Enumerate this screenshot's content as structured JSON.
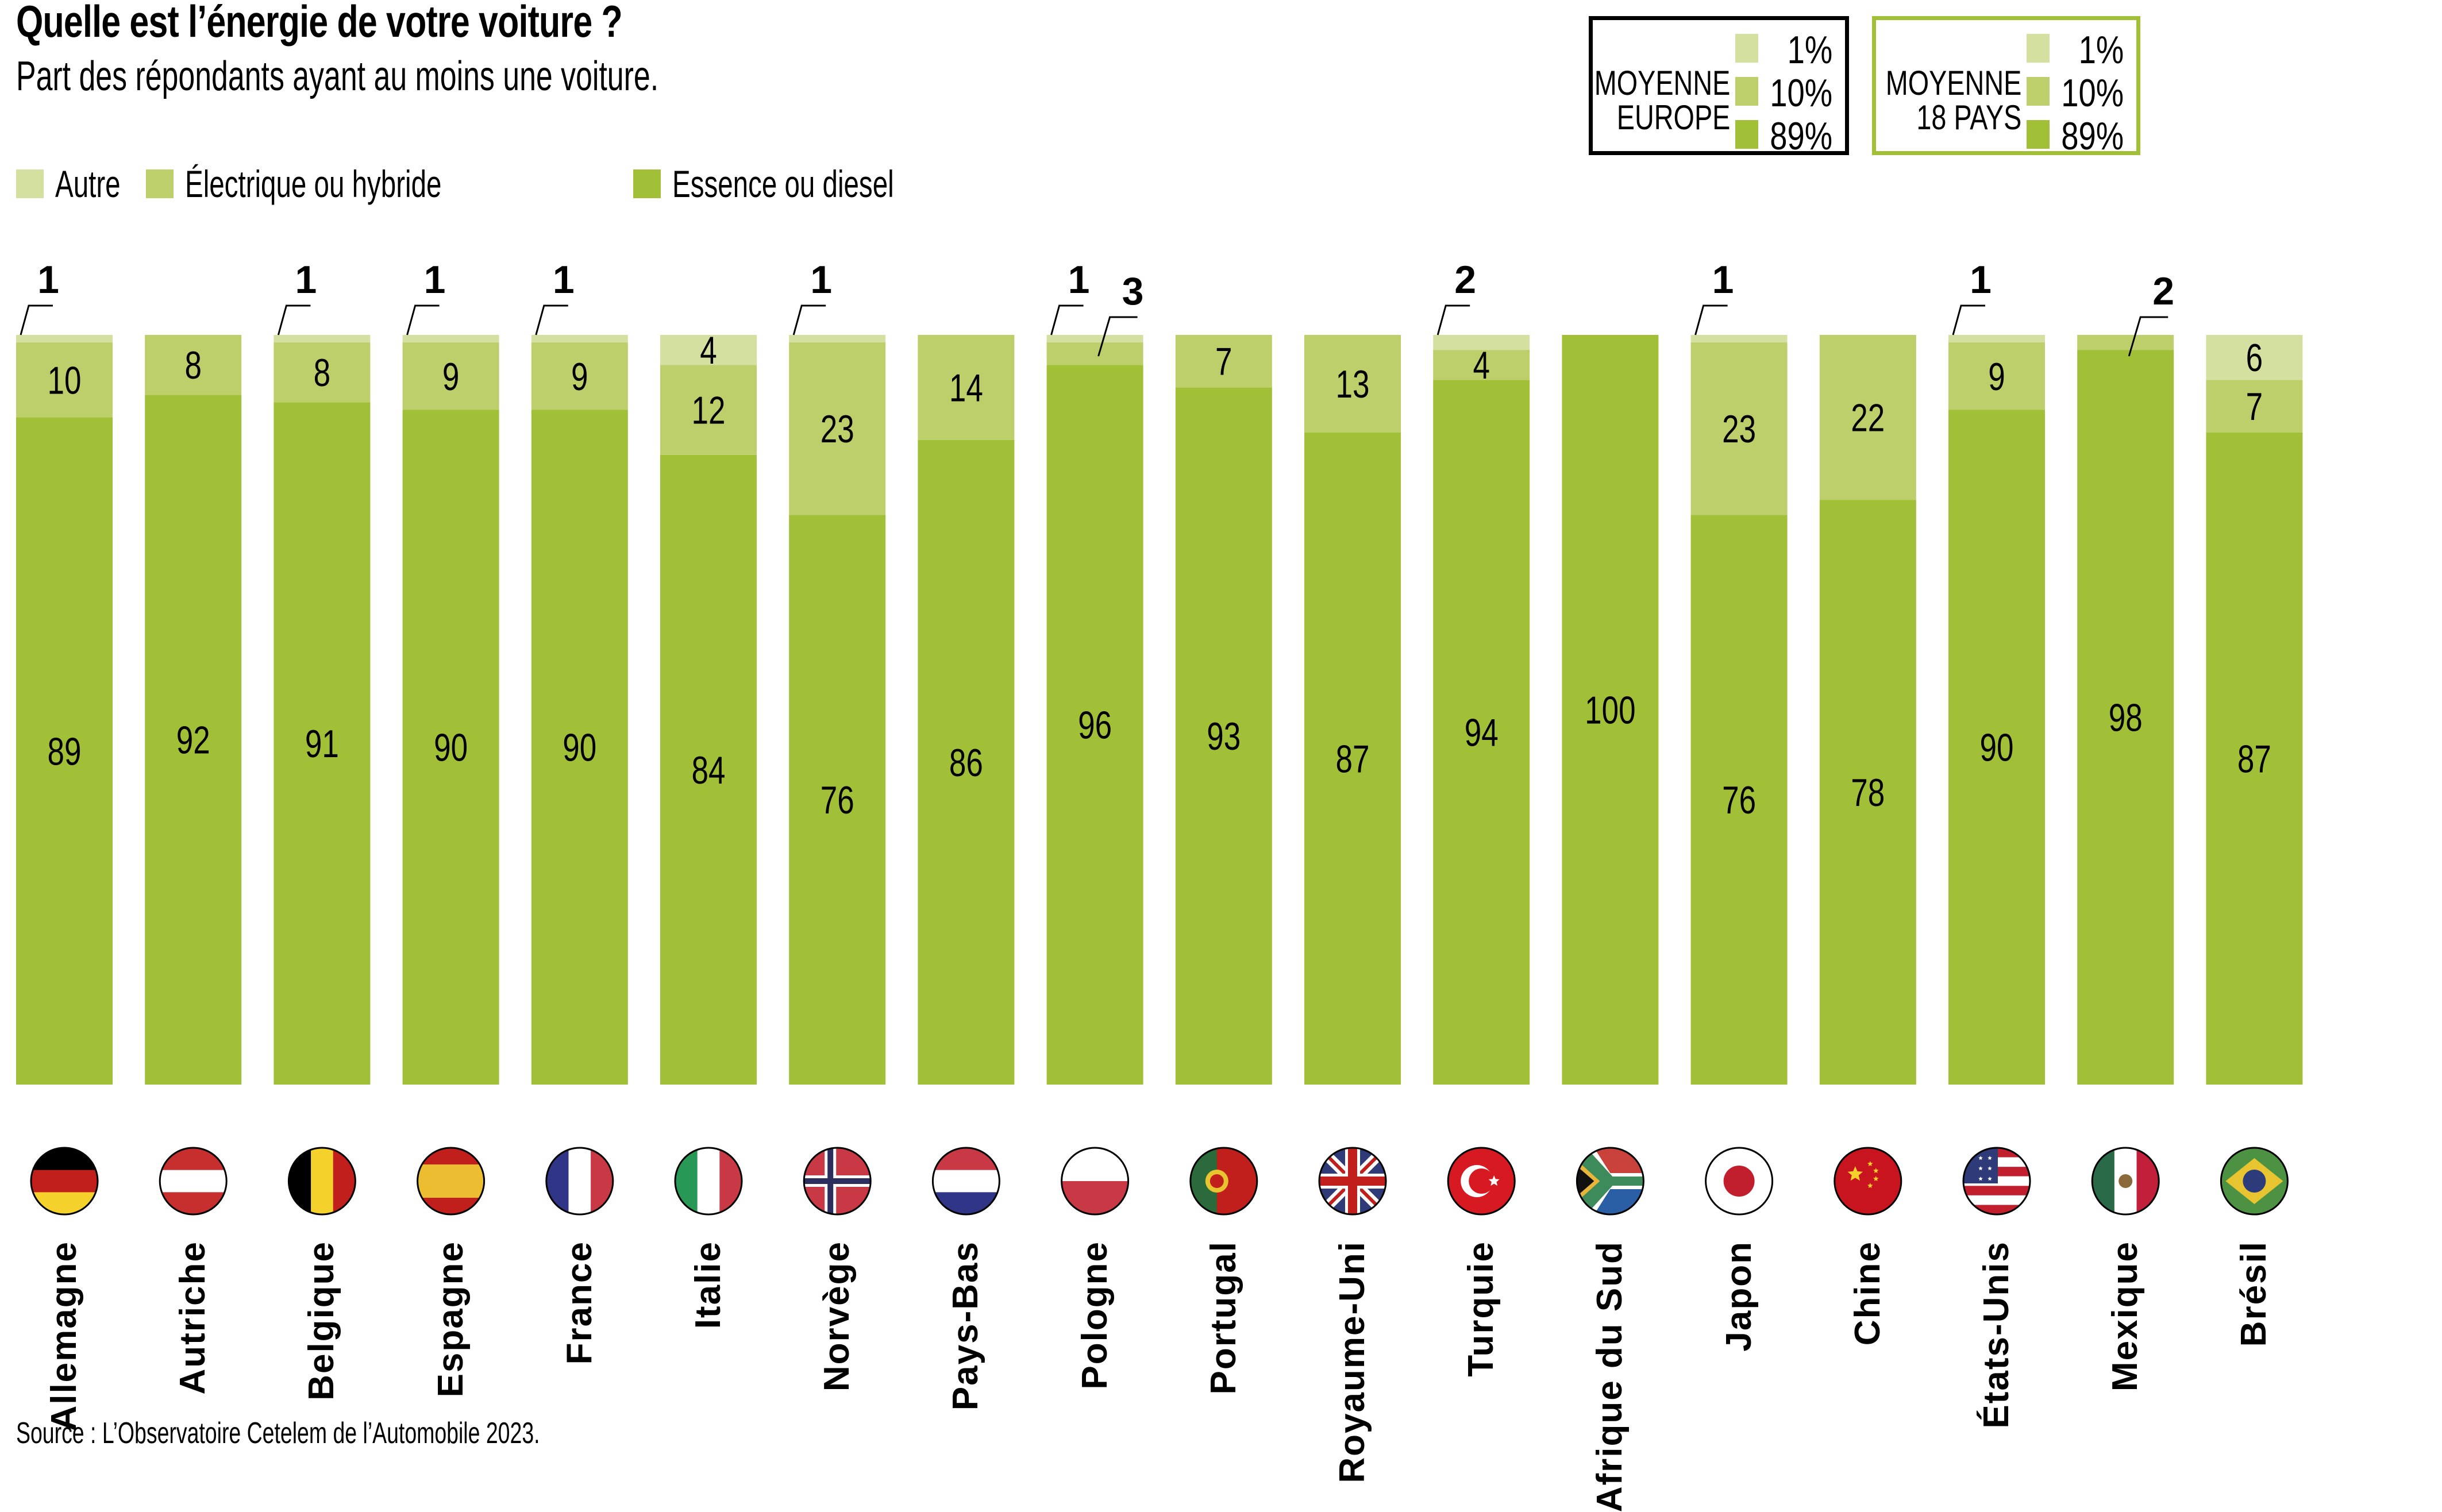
{
  "header": {
    "title": "Quelle est l’énergie de votre voiture ?",
    "subtitle": "Part des répondants ayant au moins une voiture."
  },
  "legend": [
    {
      "label": "Autre",
      "color": "#d4e09f"
    },
    {
      "label": "Électrique ou hybride",
      "color": "#bdcf6b"
    },
    {
      "label": "Essence ou diesel",
      "color": "#a2c037"
    }
  ],
  "averages": [
    {
      "title_line1": "MOYENNE",
      "title_line2": "EUROPE",
      "border_color": "#000000",
      "values": [
        "1%",
        "10%",
        "89%"
      ]
    },
    {
      "title_line1": "MOYENNE",
      "title_line2": "18 PAYS",
      "border_color": "#a2c037",
      "values": [
        "1%",
        "10%",
        "89%"
      ]
    }
  ],
  "source": "Source : L’Observatoire Cetelem de l’Automobile 2023.",
  "chart_data": {
    "type": "bar",
    "stacked": true,
    "title": "Quelle est l’énergie de votre voiture ?",
    "subtitle": "Part des répondants ayant au moins une voiture.",
    "xlabel": "",
    "ylabel": "",
    "ylim": [
      0,
      100
    ],
    "grid": false,
    "legend_position": "top-left",
    "categories": [
      "Allemagne",
      "Autriche",
      "Belgique",
      "Espagne",
      "France",
      "Italie",
      "Norvège",
      "Pays-Bas",
      "Pologne",
      "Portugal",
      "Royaume-Uni",
      "Turquie",
      "Afrique du Sud",
      "Japon",
      "Chine",
      "États-Unis",
      "Mexique",
      "Brésil"
    ],
    "flags": [
      "flag-de-icon",
      "flag-at-icon",
      "flag-be-icon",
      "flag-es-icon",
      "flag-fr-icon",
      "flag-it-icon",
      "flag-no-icon",
      "flag-nl-icon",
      "flag-pl-icon",
      "flag-pt-icon",
      "flag-gb-icon",
      "flag-tr-icon",
      "flag-za-icon",
      "flag-jp-icon",
      "flag-cn-icon",
      "flag-us-icon",
      "flag-mx-icon",
      "flag-br-icon"
    ],
    "series": [
      {
        "name": "Essence ou diesel",
        "color": "#a2c037",
        "values": [
          89,
          92,
          91,
          90,
          90,
          84,
          76,
          86,
          96,
          93,
          87,
          94,
          100,
          76,
          78,
          90,
          98,
          87
        ]
      },
      {
        "name": "Électrique ou hybride",
        "color": "#bdcf6b",
        "values": [
          10,
          8,
          8,
          9,
          9,
          12,
          23,
          14,
          3,
          7,
          13,
          4,
          0,
          23,
          22,
          9,
          2,
          7
        ]
      },
      {
        "name": "Autre",
        "color": "#d4e09f",
        "values": [
          1,
          0,
          1,
          1,
          1,
          4,
          1,
          0,
          1,
          0,
          0,
          2,
          0,
          1,
          0,
          1,
          0,
          6
        ]
      }
    ],
    "labels": {
      "Essence ou diesel": [
        "89",
        "92",
        "91",
        "90",
        "90",
        "84",
        "76",
        "86",
        "96",
        "93",
        "87",
        "94",
        "100",
        "76",
        "78",
        "90",
        "98",
        "87"
      ],
      "Électrique ou hybride": [
        "10",
        "8",
        "8",
        "9",
        "9",
        "12",
        "23",
        "14",
        "3",
        "7",
        "13",
        "4",
        "",
        "23",
        "22",
        "9",
        "2",
        "7"
      ],
      "Autre": [
        "1",
        "",
        "1",
        "1",
        "1",
        "4",
        "1",
        "",
        "1",
        "",
        "",
        "2",
        "",
        "1",
        "",
        "1",
        "",
        "6"
      ]
    },
    "callouts": [
      {
        "category": "Allemagne",
        "series": "Autre",
        "text": "1"
      },
      {
        "category": "Belgique",
        "series": "Autre",
        "text": "1"
      },
      {
        "category": "Espagne",
        "series": "Autre",
        "text": "1"
      },
      {
        "category": "France",
        "series": "Autre",
        "text": "1"
      },
      {
        "category": "Norvège",
        "series": "Autre",
        "text": "1"
      },
      {
        "category": "Pologne",
        "series": "Autre",
        "text": "1"
      },
      {
        "category": "Pologne",
        "series": "Électrique ou hybride",
        "text": "3"
      },
      {
        "category": "Turquie",
        "series": "Autre",
        "text": "2"
      },
      {
        "category": "Japon",
        "series": "Autre",
        "text": "1"
      },
      {
        "category": "États-Unis",
        "series": "Autre",
        "text": "1"
      },
      {
        "category": "Mexique",
        "series": "Électrique ou hybride",
        "text": "2"
      }
    ]
  }
}
